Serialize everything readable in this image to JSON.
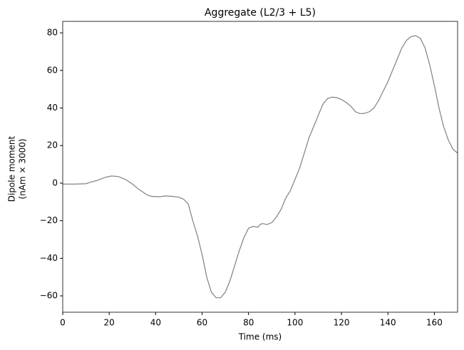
{
  "chart_data": {
    "type": "line",
    "title": "Aggregate (L2/3 + L5)",
    "xlabel": "Time (ms)",
    "ylabel": [
      "Dipole moment",
      "(nAm × 3000)"
    ],
    "x": [
      0,
      5,
      10,
      12,
      15,
      18,
      21,
      24,
      27,
      30,
      33,
      36,
      38,
      40,
      42,
      44,
      47,
      50,
      52,
      54,
      56,
      58,
      60,
      62,
      64,
      66,
      68,
      70,
      72,
      74,
      76,
      78,
      80,
      82,
      84,
      85,
      86,
      88,
      90,
      92,
      94,
      96,
      98,
      100,
      102,
      104,
      106,
      108,
      110,
      112,
      114,
      116,
      118,
      120,
      122,
      124,
      126,
      128,
      130,
      132,
      134,
      136,
      138,
      140,
      142,
      144,
      146,
      148,
      150,
      152,
      154,
      156,
      158,
      160,
      162,
      164,
      166,
      168,
      170
    ],
    "series": [
      {
        "color": "#808080",
        "values": [
          -0.5,
          -0.5,
          -0.3,
          0.5,
          1.5,
          3,
          3.8,
          3.5,
          2,
          -0.5,
          -3.5,
          -6,
          -7,
          -7.2,
          -7.2,
          -6.8,
          -7,
          -7.5,
          -8.5,
          -11,
          -20,
          -28,
          -38,
          -50,
          -58,
          -61,
          -61,
          -58,
          -52,
          -44,
          -36,
          -29,
          -24,
          -23,
          -23.5,
          -22,
          -21.5,
          -22,
          -21,
          -18,
          -14,
          -8,
          -4,
          2,
          8,
          16,
          24,
          30,
          36,
          42,
          45,
          45.8,
          45.5,
          44.5,
          43,
          41,
          38,
          37,
          37.2,
          38,
          40,
          44,
          49,
          54,
          60,
          66,
          72,
          76,
          78,
          78.5,
          77,
          72,
          63,
          52,
          40,
          30,
          23,
          18,
          16
        ]
      }
    ],
    "xlim": [
      0,
      170
    ],
    "xticks": [
      0,
      20,
      40,
      60,
      80,
      100,
      120,
      140,
      160
    ],
    "ylim": [
      -68.7,
      86.1
    ],
    "yticks": [
      {
        "value": -60,
        "label": "−60"
      },
      {
        "value": -40,
        "label": "−40"
      },
      {
        "value": -20,
        "label": "−20"
      },
      0,
      20,
      40,
      60,
      80
    ]
  }
}
